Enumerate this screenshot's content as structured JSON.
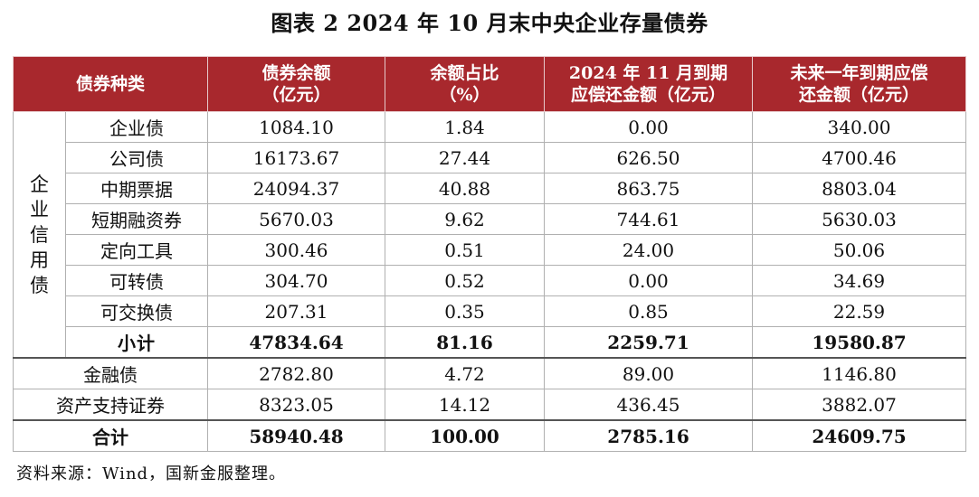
{
  "title": "图表 2  2024 年 10 月末中央企业存量债券",
  "headers": [
    {
      "line1": "债券种类",
      "line2": ""
    },
    {
      "line1": "债券余额",
      "line2": "（亿元）"
    },
    {
      "line1": "余额占比",
      "line2": "（%）"
    },
    {
      "line1": "2024 年 11 月到期",
      "line2": "应偿还金额（亿元）"
    },
    {
      "line1": "未来一年到期应偿",
      "line2": "还金额（亿元）"
    }
  ],
  "group_label": "企业信用债",
  "group_rows": [
    {
      "name": "企业债",
      "balance": "1084.10",
      "share": "1.84",
      "nov": "0.00",
      "year": "340.00"
    },
    {
      "name": "公司债",
      "balance": "16173.67",
      "share": "27.44",
      "nov": "626.50",
      "year": "4700.46"
    },
    {
      "name": "中期票据",
      "balance": "24094.37",
      "share": "40.88",
      "nov": "863.75",
      "year": "8803.04"
    },
    {
      "name": "短期融资券",
      "balance": "5670.03",
      "share": "9.62",
      "nov": "744.61",
      "year": "5630.03"
    },
    {
      "name": "定向工具",
      "balance": "300.46",
      "share": "0.51",
      "nov": "24.00",
      "year": "50.06"
    },
    {
      "name": "可转债",
      "balance": "304.70",
      "share": "0.52",
      "nov": "0.00",
      "year": "34.69"
    },
    {
      "name": "可交换债",
      "balance": "207.31",
      "share": "0.35",
      "nov": "0.85",
      "year": "22.59"
    }
  ],
  "subtotal": {
    "name": "小计",
    "balance": "47834.64",
    "share": "81.16",
    "nov": "2259.71",
    "year": "19580.87"
  },
  "other_rows": [
    {
      "name": "金融债",
      "balance": "2782.80",
      "share": "4.72",
      "nov": "89.00",
      "year": "1146.80"
    },
    {
      "name": "资产支持证券",
      "balance": "8323.05",
      "share": "14.12",
      "nov": "436.45",
      "year": "3882.07"
    }
  ],
  "total": {
    "name": "合计",
    "balance": "58940.48",
    "share": "100.00",
    "nov": "2785.16",
    "year": "24609.75"
  },
  "source": "资料来源：Wind，国新金服整理。",
  "colors": {
    "header_bg": "#a8282d",
    "header_text": "#ffffff"
  }
}
